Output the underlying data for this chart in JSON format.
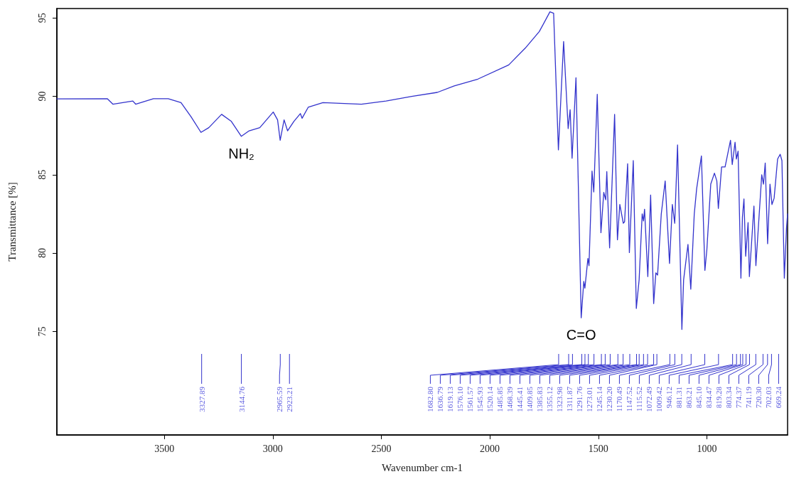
{
  "chart_data": {
    "type": "line",
    "xlabel": "Wavenumber cm-1",
    "ylabel": "Transmittance [%]",
    "xlim": [
      3995,
      628
    ],
    "ylim": [
      68.4,
      95.6
    ],
    "xticks": [
      3500,
      3000,
      2500,
      2000,
      1500,
      1000
    ],
    "yticks": [
      75,
      80,
      85,
      90,
      95
    ],
    "marker": "none",
    "color": "#3333cc",
    "x": [
      3995,
      3763,
      3737,
      3645,
      3632,
      3550,
      3482,
      3423,
      3377,
      3331,
      3295,
      3236,
      3191,
      3145,
      3109,
      3060,
      2998,
      2978,
      2966,
      2948,
      2932,
      2903,
      2873,
      2865,
      2837,
      2769,
      2592,
      2478,
      2360,
      2242,
      2164,
      2055,
      1913,
      1837,
      1772,
      1723,
      1706,
      1684,
      1660,
      1639,
      1630,
      1621,
      1603,
      1579,
      1567,
      1562,
      1548,
      1543,
      1529,
      1521,
      1505,
      1488,
      1475,
      1466,
      1461,
      1448,
      1425,
      1412,
      1401,
      1385,
      1379,
      1365,
      1357,
      1339,
      1325,
      1312,
      1298,
      1292,
      1287,
      1272,
      1259,
      1245,
      1235,
      1227,
      1210,
      1192,
      1172,
      1159,
      1148,
      1135,
      1115,
      1107,
      1087,
      1074,
      1058,
      1047,
      1025,
      1009,
      1000,
      982,
      965,
      954,
      947,
      932,
      916,
      891,
      883,
      870,
      864,
      856,
      843,
      836,
      829,
      821,
      810,
      804,
      783,
      774,
      747,
      739,
      731,
      720,
      709,
      700,
      690,
      674,
      662,
      654,
      643,
      633,
      628
    ],
    "values": [
      89.84,
      89.85,
      89.5,
      89.7,
      89.5,
      89.85,
      89.85,
      89.6,
      88.7,
      87.7,
      88.0,
      88.85,
      88.4,
      87.45,
      87.8,
      88.0,
      89.0,
      88.5,
      87.2,
      88.5,
      87.8,
      88.4,
      88.9,
      88.6,
      89.3,
      89.6,
      89.5,
      89.7,
      90.0,
      90.25,
      90.66,
      91.1,
      92.0,
      93.07,
      94.13,
      95.39,
      95.3,
      86.58,
      93.5,
      87.94,
      89.15,
      86.05,
      91.19,
      75.87,
      78.2,
      77.77,
      79.66,
      79.2,
      85.23,
      83.9,
      90.13,
      81.3,
      83.87,
      83.4,
      85.2,
      80.33,
      88.85,
      80.85,
      83.1,
      81.9,
      82.0,
      85.7,
      80.03,
      85.9,
      76.47,
      78.3,
      82.5,
      82.05,
      82.8,
      78.5,
      83.7,
      76.78,
      78.74,
      78.6,
      82.5,
      84.6,
      79.34,
      83.1,
      81.9,
      86.9,
      75.13,
      78.3,
      80.55,
      77.7,
      82.5,
      84.1,
      86.2,
      78.9,
      80.2,
      84.4,
      85.1,
      84.6,
      82.85,
      85.5,
      85.5,
      87.2,
      85.65,
      87.07,
      86.0,
      86.5,
      78.4,
      82.3,
      83.45,
      79.8,
      81.95,
      78.5,
      83.0,
      79.2,
      85.0,
      84.4,
      85.75,
      80.6,
      84.4,
      83.1,
      83.5,
      86.0,
      86.3,
      85.9,
      78.4,
      81.6,
      82.5
    ],
    "annotations": [
      {
        "text": "NH₂",
        "x": 3145,
        "y": 87.45
      },
      {
        "text": "C=O",
        "x": 1579,
        "y": 75.87
      },
      {
        "text": "3327.89",
        "x": 3327.89
      },
      {
        "text": "3144.76",
        "x": 3144.76
      },
      {
        "text": "2965.59",
        "x": 2965.59
      },
      {
        "text": "2923.21",
        "x": 2923.21
      },
      {
        "text": "1682.80",
        "x": 1682.8
      },
      {
        "text": "1636.79",
        "x": 1636.79
      },
      {
        "text": "1619.13",
        "x": 1619.13
      },
      {
        "text": "1576.10",
        "x": 1576.1
      },
      {
        "text": "1561.57",
        "x": 1561.57
      },
      {
        "text": "1545.93",
        "x": 1545.93
      },
      {
        "text": "1520.14",
        "x": 1520.14
      },
      {
        "text": "1485.85",
        "x": 1485.85
      },
      {
        "text": "1468.39",
        "x": 1468.39
      },
      {
        "text": "1445.41",
        "x": 1445.41
      },
      {
        "text": "1409.85",
        "x": 1409.85
      },
      {
        "text": "1385.83",
        "x": 1385.83
      },
      {
        "text": "1355.12",
        "x": 1355.12
      },
      {
        "text": "1323.98",
        "x": 1323.98
      },
      {
        "text": "1311.87",
        "x": 1311.87
      },
      {
        "text": "1291.76",
        "x": 1291.76
      },
      {
        "text": "1273.01",
        "x": 1273.01
      },
      {
        "text": "1245.14",
        "x": 1245.14
      },
      {
        "text": "1230.20",
        "x": 1230.2
      },
      {
        "text": "1170.49",
        "x": 1170.49
      },
      {
        "text": "1147.52",
        "x": 1147.52
      },
      {
        "text": "1115.52",
        "x": 1115.52
      },
      {
        "text": "1072.49",
        "x": 1072.49
      },
      {
        "text": "1009.42",
        "x": 1009.42
      },
      {
        "text": "946.12",
        "x": 946.12
      },
      {
        "text": "881.31",
        "x": 881.31
      },
      {
        "text": "863.21",
        "x": 863.21
      },
      {
        "text": "845.10",
        "x": 845.1
      },
      {
        "text": "834.47",
        "x": 834.47
      },
      {
        "text": "819.28",
        "x": 819.28
      },
      {
        "text": "803.34",
        "x": 803.34
      },
      {
        "text": "774.37",
        "x": 774.37
      },
      {
        "text": "741.19",
        "x": 741.19
      },
      {
        "text": "720.30",
        "x": 720.3
      },
      {
        "text": "702.03",
        "x": 702.03
      },
      {
        "text": "669.24",
        "x": 669.24
      }
    ]
  }
}
